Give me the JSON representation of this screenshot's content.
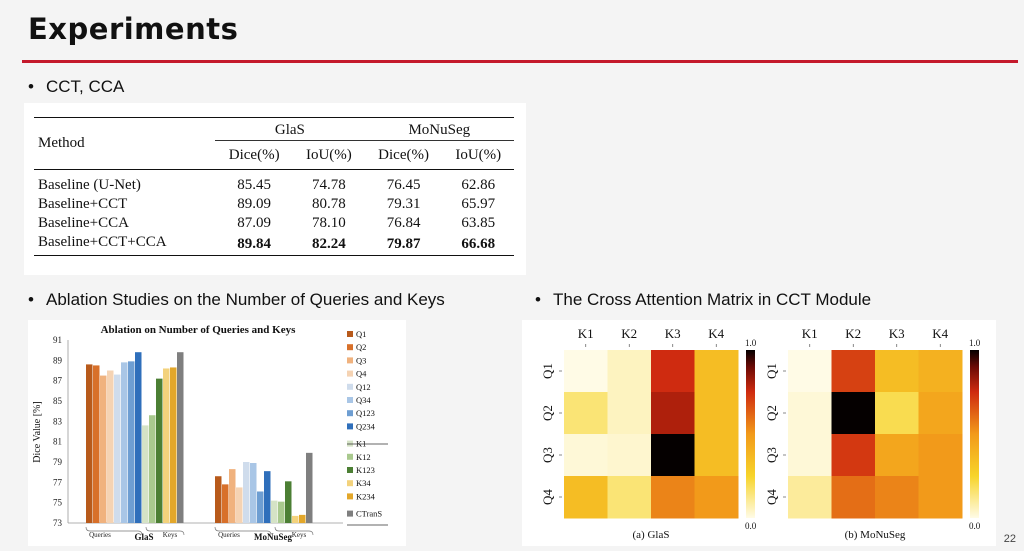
{
  "slide": {
    "title": "Experiments",
    "bullet1": "CCT, CCA",
    "bullet2": "Ablation Studies on the Number of Queries and Keys",
    "bullet3": "The Cross Attention Matrix in CCT Module",
    "page_number": "22",
    "accent_color": "#c4192b"
  },
  "table": {
    "method_header": "Method",
    "glas_header": "GlaS",
    "monuseg_header": "MoNuSeg",
    "sub_headers": [
      "Dice(%)",
      "IoU(%)",
      "Dice(%)",
      "IoU(%)"
    ],
    "rows": [
      {
        "method": "Baseline (U-Net)",
        "v": [
          "85.45",
          "74.78",
          "76.45",
          "62.86"
        ]
      },
      {
        "method": "Baseline+CCT",
        "v": [
          "89.09",
          "80.78",
          "79.31",
          "65.97"
        ]
      },
      {
        "method": "Baseline+CCA",
        "v": [
          "87.09",
          "78.10",
          "76.84",
          "63.85"
        ]
      },
      {
        "method": "Baseline+CCT+CCA",
        "v": [
          "89.84",
          "82.24",
          "79.87",
          "66.68"
        ]
      }
    ]
  },
  "chart_data": [
    {
      "type": "bar",
      "title": "Ablation on Number of Queries and Keys",
      "ylabel": "Dice Value [%]",
      "ylim": [
        73,
        91
      ],
      "yticks": [
        73,
        75,
        77,
        79,
        81,
        83,
        85,
        87,
        89,
        91
      ],
      "groups": [
        "GlaS",
        "MoNuSeg"
      ],
      "subgroup_labels": [
        "Queries",
        "Keys"
      ],
      "legend_position": "right",
      "series": [
        {
          "name": "Q1",
          "color": "#b85a1b",
          "values": [
            88.6,
            77.6
          ]
        },
        {
          "name": "Q2",
          "color": "#d8702a",
          "values": [
            88.5,
            76.8
          ]
        },
        {
          "name": "Q3",
          "color": "#f0b27e",
          "values": [
            87.5,
            78.3
          ]
        },
        {
          "name": "Q4",
          "color": "#f5d3b3",
          "values": [
            88.0,
            76.5
          ]
        },
        {
          "name": "Q12",
          "color": "#cfdcec",
          "values": [
            87.6,
            79.0
          ]
        },
        {
          "name": "Q34",
          "color": "#a9c6e6",
          "values": [
            88.8,
            78.9
          ]
        },
        {
          "name": "Q123",
          "color": "#6e9ed2",
          "values": [
            88.9,
            76.1
          ]
        },
        {
          "name": "Q234",
          "color": "#2f6fbb",
          "values": [
            89.8,
            78.1
          ]
        },
        {
          "name": "K1",
          "color": "#d5e3c6",
          "values": [
            82.6,
            75.2
          ]
        },
        {
          "name": "K12",
          "color": "#a9c98e",
          "values": [
            83.6,
            75.1
          ]
        },
        {
          "name": "K123",
          "color": "#4c7f34",
          "values": [
            87.2,
            77.1
          ]
        },
        {
          "name": "K34",
          "color": "#f3d27c",
          "values": [
            88.2,
            73.7
          ]
        },
        {
          "name": "K234",
          "color": "#e3a72a",
          "values": [
            88.3,
            73.8
          ]
        },
        {
          "name": "CTranS",
          "color": "#7f7f7f",
          "values": [
            89.8,
            79.9
          ]
        }
      ]
    },
    {
      "type": "heatmap",
      "caption": "(a) GlaS",
      "x": [
        "K1",
        "K2",
        "K3",
        "K4"
      ],
      "y": [
        "Q1",
        "Q2",
        "Q3",
        "Q4"
      ],
      "values": [
        [
          0.0,
          0.05,
          0.75,
          0.35
        ],
        [
          0.15,
          0.05,
          0.8,
          0.35
        ],
        [
          0.02,
          0.03,
          1.0,
          0.35
        ],
        [
          0.35,
          0.15,
          0.55,
          0.5
        ]
      ],
      "colorbar": {
        "min": "0.0",
        "max": "1.0"
      }
    },
    {
      "type": "heatmap",
      "caption": "(b) MoNuSeg",
      "x": [
        "K1",
        "K2",
        "K3",
        "K4"
      ],
      "y": [
        "Q1",
        "Q2",
        "Q3",
        "Q4"
      ],
      "values": [
        [
          0.0,
          0.7,
          0.35,
          0.4
        ],
        [
          0.02,
          1.0,
          0.2,
          0.45
        ],
        [
          0.02,
          0.72,
          0.45,
          0.5
        ],
        [
          0.1,
          0.6,
          0.55,
          0.5
        ]
      ],
      "colorbar": {
        "min": "0.0",
        "max": "1.0"
      }
    }
  ]
}
